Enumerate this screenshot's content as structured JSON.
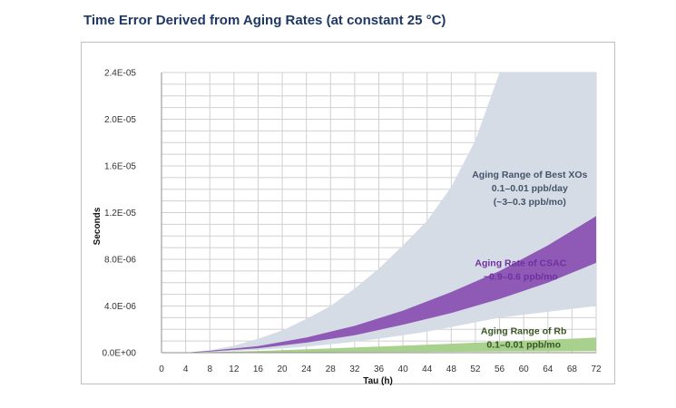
{
  "chart_data": {
    "type": "area",
    "title": "Time Error Derived from Aging Rates (at constant 25 °C)",
    "xlabel": "Tau (h)",
    "ylabel": "Seconds",
    "x_ticks": [
      0,
      4,
      8,
      12,
      16,
      20,
      24,
      28,
      32,
      36,
      40,
      44,
      48,
      52,
      56,
      60,
      64,
      68,
      72
    ],
    "y_ticks": [
      "0.0E+00",
      "4.0E-06",
      "8.0E-06",
      "1.2E-05",
      "1.6E-05",
      "2.0E-05",
      "2.4E-05"
    ],
    "xlim": [
      0,
      72
    ],
    "ylim": [
      0,
      2.4e-05
    ],
    "grid": true,
    "legend": "none",
    "bands": [
      {
        "name": "Aging Range of Best XOs",
        "fill_color": "#d6dce6",
        "x": [
          0,
          4,
          8,
          12,
          16,
          20,
          24,
          28,
          32,
          36,
          40,
          44,
          48,
          52,
          56,
          72
        ],
        "upper": [
          0,
          0,
          2.2e-07,
          6e-07,
          1.2e-06,
          1.9e-06,
          2.9e-06,
          4e-06,
          5.5e-06,
          7.2e-06,
          9.2e-06,
          1.13e-05,
          1.42e-05,
          1.82e-05,
          2.4e-05,
          2.4e-05
        ],
        "lower": [
          0,
          0,
          6e-08,
          1.4e-07,
          2.4e-07,
          3.7e-07,
          5.3e-07,
          7.2e-07,
          9.4e-07,
          1.2e-06,
          1.5e-06,
          1.8e-06,
          2.2e-06,
          2.6e-06,
          3e-06,
          4e-06
        ]
      },
      {
        "name": "Aging Rate of CSAC",
        "fill_color": "#8e5ab5",
        "x": [
          4,
          8,
          16,
          24,
          32,
          40,
          48,
          56,
          64,
          72
        ],
        "upper": [
          0,
          1.6e-07,
          5.6e-07,
          1.3e-06,
          2.3e-06,
          3.6e-06,
          5.2e-06,
          7e-06,
          9.2e-06,
          1.17e-05
        ],
        "lower": [
          0,
          1e-07,
          3.8e-07,
          8.6e-07,
          1.5e-06,
          2.4e-06,
          3.4e-06,
          4.6e-06,
          6e-06,
          7.7e-06
        ]
      },
      {
        "name": "Aging Range of Rb",
        "fill_color": "#a9d18e",
        "x": [
          4,
          16,
          24,
          32,
          40,
          48,
          56,
          64,
          72
        ],
        "upper": [
          0,
          1.5e-07,
          2.9e-07,
          4.4e-07,
          6e-07,
          7.7e-07,
          9.4e-07,
          1.1e-06,
          1.3e-06
        ],
        "lower": [
          0,
          1.5e-08,
          3e-08,
          4.4e-08,
          6e-08,
          7.7e-08,
          9.4e-08,
          1.1e-07,
          1.3e-07
        ]
      }
    ],
    "annotations": [
      {
        "lines": [
          "Aging Range of Best XOs",
          "0.1–0.01 ppb/day",
          "(~3–0.3 ppb/mo)"
        ],
        "color": "#44546a",
        "anchor_x": 61,
        "anchor_y": 1.5e-05
      },
      {
        "lines": [
          "Aging Rate of CSAC",
          "~0.9–0.6 ppb/mo"
        ],
        "color": "#7030a0",
        "anchor_x": 59.5,
        "anchor_y": 7.4e-06
      },
      {
        "lines": [
          "Aging Range of Rb",
          "0.1–0.01 ppb/mo"
        ],
        "color": "#375623",
        "anchor_x": 60,
        "anchor_y": 1.6e-06
      }
    ]
  }
}
